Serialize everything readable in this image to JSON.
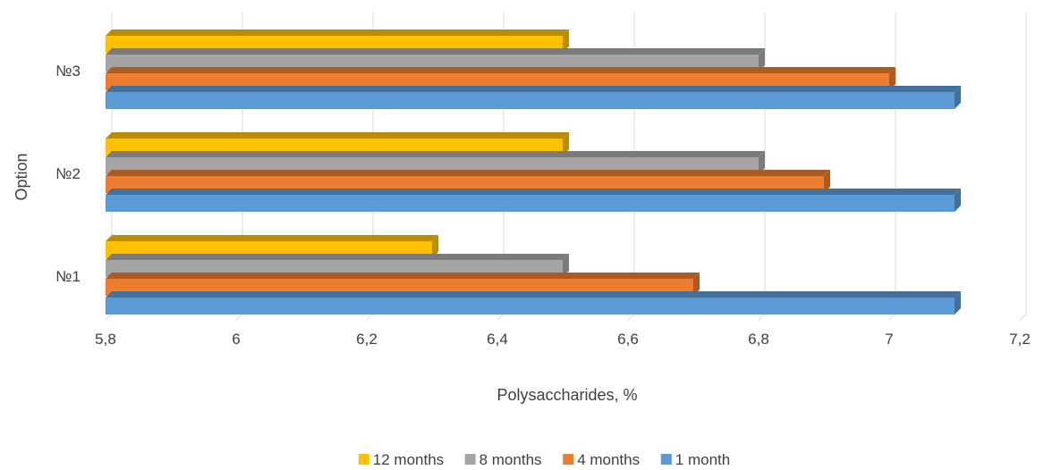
{
  "chart_data": {
    "type": "bar",
    "orientation": "horizontal",
    "style": "3d-clustered",
    "categories": [
      "№1",
      "№2",
      "№3"
    ],
    "series": [
      {
        "name": "1 month",
        "color": "#5b9bd5",
        "side_color": "#41719c",
        "values": [
          7.1,
          7.1,
          7.1
        ]
      },
      {
        "name": "4 months",
        "color": "#ed7d31",
        "side_color": "#ae5a21",
        "values": [
          6.7,
          6.9,
          7.0
        ]
      },
      {
        "name": "8 months",
        "color": "#a5a5a5",
        "side_color": "#7b7b7b",
        "values": [
          6.5,
          6.8,
          6.8
        ]
      },
      {
        "name": "12 months",
        "color": "#ffc000",
        "side_color": "#bc8c00",
        "values": [
          6.3,
          6.5,
          6.5
        ]
      }
    ],
    "legend_order": [
      "12 months",
      "8 months",
      "4 months",
      "1 month"
    ],
    "xlabel": "Polysaccharides, %",
    "ylabel": "Option",
    "xlim": [
      5.8,
      7.2
    ],
    "xticks": [
      5.8,
      6,
      6.2,
      6.4,
      6.6,
      6.8,
      7,
      7.2
    ],
    "xtick_labels": [
      "5,8",
      "6",
      "6,2",
      "6,4",
      "6,6",
      "6,8",
      "7",
      "7,2"
    ],
    "grid": "vertical",
    "legend_position": "bottom"
  }
}
